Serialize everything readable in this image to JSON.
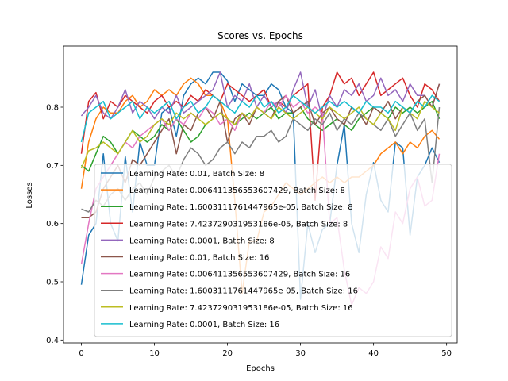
{
  "chart_data": {
    "type": "line",
    "title": "Scores vs. Epochs",
    "xlabel": "Epochs",
    "ylabel": "Losses",
    "xlim": [
      -2.45,
      51.45
    ],
    "ylim": [
      0.395,
      0.905
    ],
    "xticks": [
      0,
      10,
      20,
      30,
      40,
      50
    ],
    "yticks": [
      0.4,
      0.5,
      0.6,
      0.7,
      0.8
    ],
    "ytick_labels": [
      "0.4",
      "0.5",
      "0.6",
      "0.7",
      "0.8"
    ],
    "grid": false,
    "legend_position": "lower-center",
    "series": [
      {
        "name": "Learning Rate: 0.01, Batch Size: 8",
        "color": "#1f77b4",
        "values": [
          0.495,
          0.58,
          0.6,
          0.72,
          0.6,
          0.57,
          0.715,
          0.62,
          0.74,
          0.7,
          0.7,
          0.79,
          0.8,
          0.75,
          0.82,
          0.84,
          0.85,
          0.84,
          0.86,
          0.86,
          0.845,
          0.81,
          0.84,
          0.83,
          0.82,
          0.82,
          0.84,
          0.83,
          0.8,
          0.79,
          0.47,
          0.6,
          0.55,
          0.59,
          0.6,
          0.7,
          0.77,
          0.6,
          0.55,
          0.65,
          0.705,
          0.64,
          0.62,
          0.74,
          0.73,
          0.58,
          0.68,
          0.7,
          0.73,
          0.705
        ]
      },
      {
        "name": "Learning Rate: 0.006411356553607429, Batch Size: 8",
        "color": "#ff7f0e",
        "values": [
          0.66,
          0.74,
          0.78,
          0.8,
          0.79,
          0.79,
          0.81,
          0.82,
          0.8,
          0.81,
          0.83,
          0.82,
          0.83,
          0.82,
          0.84,
          0.85,
          0.84,
          0.82,
          0.82,
          0.81,
          0.78,
          0.64,
          0.48,
          0.57,
          0.57,
          0.62,
          0.63,
          0.65,
          0.67,
          0.66,
          0.65,
          0.66,
          0.67,
          0.68,
          0.67,
          0.68,
          0.67,
          0.68,
          0.68,
          0.69,
          0.7,
          0.72,
          0.73,
          0.74,
          0.72,
          0.74,
          0.73,
          0.75,
          0.76,
          0.745
        ]
      },
      {
        "name": "Learning Rate: 1.6003111761447965e-05, Batch Size: 8",
        "color": "#2ca02c",
        "values": [
          0.7,
          0.69,
          0.72,
          0.75,
          0.74,
          0.72,
          0.74,
          0.76,
          0.75,
          0.74,
          0.75,
          0.77,
          0.76,
          0.78,
          0.76,
          0.74,
          0.75,
          0.77,
          0.78,
          0.79,
          0.78,
          0.77,
          0.78,
          0.79,
          0.78,
          0.79,
          0.8,
          0.78,
          0.79,
          0.79,
          0.8,
          0.78,
          0.77,
          0.76,
          0.77,
          0.78,
          0.77,
          0.76,
          0.78,
          0.79,
          0.8,
          0.79,
          0.78,
          0.8,
          0.79,
          0.8,
          0.79,
          0.8,
          0.81,
          0.78
        ]
      },
      {
        "name": "Learning Rate: 7.423729031953186e-05, Batch Size: 8",
        "color": "#d62728",
        "values": [
          0.72,
          0.81,
          0.825,
          0.78,
          0.81,
          0.8,
          0.82,
          0.81,
          0.8,
          0.79,
          0.81,
          0.82,
          0.8,
          0.81,
          0.8,
          0.82,
          0.81,
          0.83,
          0.82,
          0.81,
          0.84,
          0.83,
          0.82,
          0.81,
          0.82,
          0.83,
          0.8,
          0.81,
          0.8,
          0.82,
          0.83,
          0.84,
          0.64,
          0.8,
          0.82,
          0.86,
          0.84,
          0.85,
          0.82,
          0.84,
          0.86,
          0.82,
          0.83,
          0.84,
          0.85,
          0.82,
          0.8,
          0.84,
          0.83,
          0.81
        ]
      },
      {
        "name": "Learning Rate: 0.0001, Batch Size: 8",
        "color": "#9467bd",
        "values": [
          0.785,
          0.8,
          0.82,
          0.79,
          0.78,
          0.8,
          0.83,
          0.79,
          0.81,
          0.8,
          0.78,
          0.8,
          0.79,
          0.82,
          0.79,
          0.8,
          0.81,
          0.82,
          0.83,
          0.86,
          0.8,
          0.82,
          0.81,
          0.84,
          0.8,
          0.82,
          0.8,
          0.81,
          0.79,
          0.83,
          0.86,
          0.8,
          0.83,
          0.78,
          0.82,
          0.8,
          0.83,
          0.82,
          0.84,
          0.81,
          0.82,
          0.85,
          0.82,
          0.83,
          0.81,
          0.84,
          0.82,
          0.82,
          0.8,
          0.84
        ]
      },
      {
        "name": "Learning Rate: 0.01, Batch Size: 16",
        "color": "#8c564b",
        "values": [
          0.61,
          0.61,
          0.62,
          0.66,
          0.68,
          0.7,
          0.67,
          0.71,
          0.7,
          0.72,
          0.74,
          0.76,
          0.78,
          0.72,
          0.77,
          0.76,
          0.79,
          0.8,
          0.78,
          0.81,
          0.74,
          0.78,
          0.79,
          0.77,
          0.8,
          0.79,
          0.78,
          0.81,
          0.82,
          0.79,
          0.8,
          0.81,
          0.77,
          0.79,
          0.8,
          0.78,
          0.77,
          0.8,
          0.79,
          0.77,
          0.8,
          0.79,
          0.81,
          0.78,
          0.8,
          0.79,
          0.81,
          0.82,
          0.8,
          0.84
        ]
      },
      {
        "name": "Learning Rate: 0.006411356553607429, Batch Size: 16",
        "color": "#e377c2",
        "values": [
          0.53,
          0.6,
          0.66,
          0.68,
          0.7,
          0.72,
          0.74,
          0.73,
          0.75,
          0.76,
          0.77,
          0.78,
          0.76,
          0.78,
          0.77,
          0.79,
          0.78,
          0.8,
          0.79,
          0.77,
          0.78,
          0.76,
          0.79,
          0.78,
          0.8,
          0.79,
          0.81,
          0.8,
          0.82,
          0.8,
          0.81,
          0.79,
          0.8,
          0.79,
          0.6,
          0.61,
          0.52,
          0.46,
          0.49,
          0.48,
          0.5,
          0.56,
          0.54,
          0.62,
          0.6,
          0.66,
          0.68,
          0.63,
          0.64,
          0.72
        ]
      },
      {
        "name": "Learning Rate: 1.6003111761447965e-05, Batch Size: 16",
        "color": "#7f7f7f",
        "values": [
          0.625,
          0.62,
          0.64,
          0.63,
          0.65,
          0.66,
          0.64,
          0.66,
          0.67,
          0.65,
          0.68,
          0.69,
          0.7,
          0.68,
          0.71,
          0.73,
          0.72,
          0.7,
          0.71,
          0.73,
          0.74,
          0.72,
          0.74,
          0.73,
          0.75,
          0.75,
          0.76,
          0.74,
          0.75,
          0.78,
          0.77,
          0.76,
          0.78,
          0.77,
          0.79,
          0.76,
          0.78,
          0.77,
          0.79,
          0.78,
          0.77,
          0.76,
          0.78,
          0.75,
          0.77,
          0.79,
          0.76,
          0.78,
          0.67,
          0.8
        ]
      },
      {
        "name": "Learning Rate: 7.423729031953186e-05, Batch Size: 16",
        "color": "#bcbd22",
        "values": [
          0.695,
          0.725,
          0.73,
          0.74,
          0.73,
          0.72,
          0.74,
          0.76,
          0.74,
          0.75,
          0.77,
          0.78,
          0.77,
          0.79,
          0.78,
          0.79,
          0.78,
          0.77,
          0.78,
          0.79,
          0.78,
          0.77,
          0.79,
          0.78,
          0.8,
          0.79,
          0.78,
          0.8,
          0.79,
          0.78,
          0.79,
          0.8,
          0.79,
          0.78,
          0.8,
          0.79,
          0.78,
          0.79,
          0.8,
          0.78,
          0.77,
          0.79,
          0.78,
          0.76,
          0.8,
          0.79,
          0.78,
          0.81,
          0.8,
          0.79
        ]
      },
      {
        "name": "Learning Rate: 0.0001, Batch Size: 16",
        "color": "#17becf",
        "values": [
          0.74,
          0.79,
          0.8,
          0.81,
          0.78,
          0.79,
          0.8,
          0.81,
          0.78,
          0.8,
          0.79,
          0.8,
          0.81,
          0.78,
          0.8,
          0.81,
          0.79,
          0.8,
          0.82,
          0.81,
          0.8,
          0.79,
          0.81,
          0.8,
          0.82,
          0.8,
          0.81,
          0.79,
          0.8,
          0.82,
          0.81,
          0.8,
          0.79,
          0.8,
          0.81,
          0.8,
          0.81,
          0.8,
          0.79,
          0.81,
          0.8,
          0.8,
          0.79,
          0.81,
          0.8,
          0.79,
          0.81,
          0.8,
          0.82,
          0.81
        ]
      }
    ]
  }
}
